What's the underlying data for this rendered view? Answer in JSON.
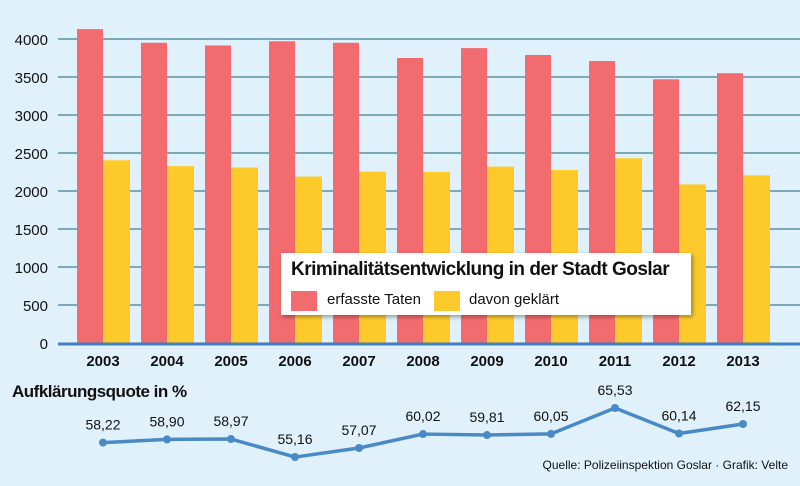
{
  "chart_data": [
    {
      "type": "bar",
      "title": "Kriminalitätsentwicklung in der Stadt Goslar",
      "categories": [
        "2003",
        "2004",
        "2005",
        "2006",
        "2007",
        "2008",
        "2009",
        "2010",
        "2011",
        "2012",
        "2013"
      ],
      "series": [
        {
          "name": "erfasste Taten",
          "color": "#f26b6f",
          "values": [
            4130,
            3950,
            3915,
            3970,
            3950,
            3750,
            3880,
            3790,
            3710,
            3470,
            3550
          ]
        },
        {
          "name": "davon geklärt",
          "color": "#fccb2b",
          "values": [
            2404,
            2327,
            2309,
            2190,
            2254,
            2251,
            2321,
            2276,
            2431,
            2087,
            2206
          ]
        }
      ],
      "ylim": [
        0,
        4000
      ],
      "yticks": [
        "0",
        "500",
        "1000",
        "1500",
        "2000",
        "2500",
        "3000",
        "3500",
        "4000"
      ],
      "grid": true,
      "legend": "center-right"
    },
    {
      "type": "line",
      "title": "Aufklärungsquote in %",
      "categories": [
        "2003",
        "2004",
        "2005",
        "2006",
        "2007",
        "2008",
        "2009",
        "2010",
        "2011",
        "2012",
        "2013"
      ],
      "values": [
        58.22,
        58.9,
        58.97,
        55.16,
        57.07,
        60.02,
        59.81,
        60.05,
        65.53,
        60.14,
        62.15
      ],
      "labels": [
        "58,22",
        "58,90",
        "58,97",
        "55,16",
        "57,07",
        "60,02",
        "59,81",
        "60,05",
        "65,53",
        "60,14",
        "62,15"
      ],
      "color": "#4a8ac4"
    }
  ],
  "source": "Quelle: Polizeiinspektion Goslar · Grafik: Velte"
}
